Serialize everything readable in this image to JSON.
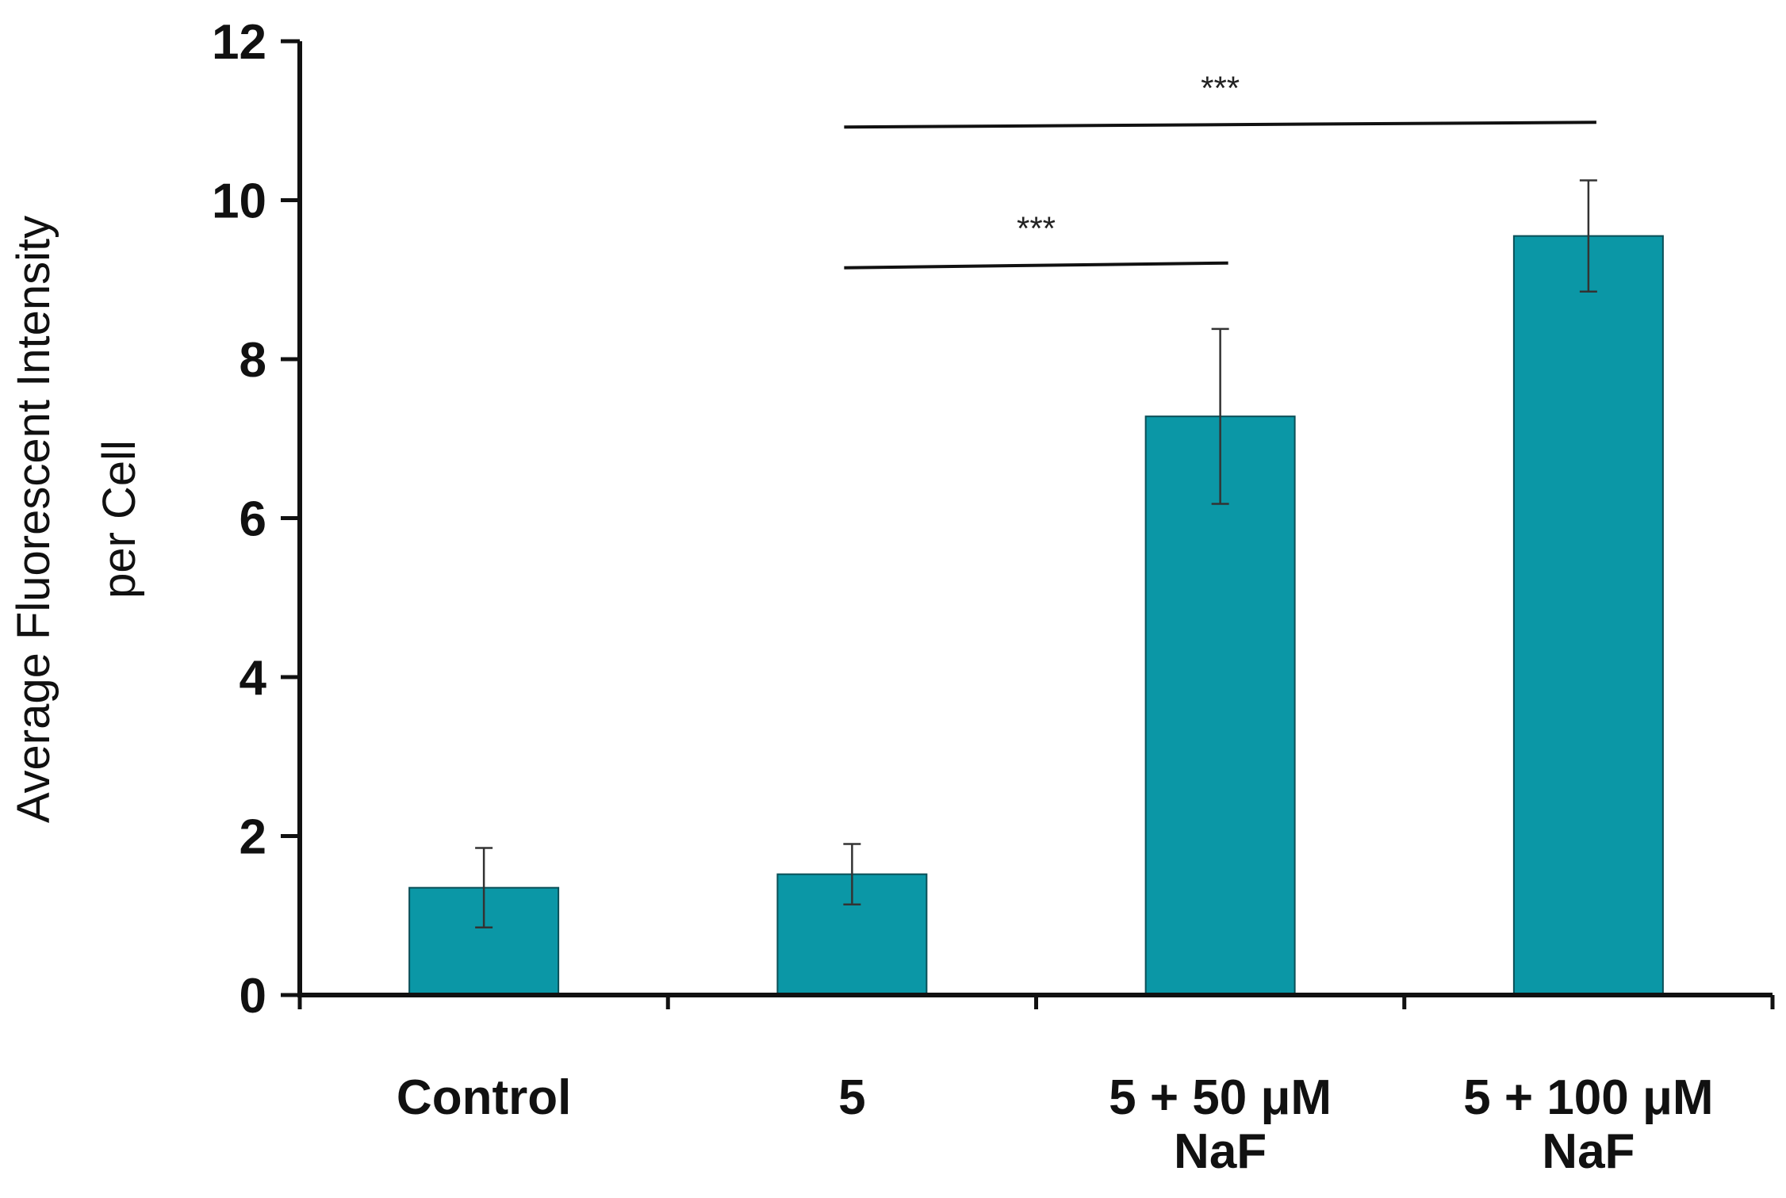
{
  "chart_data": {
    "type": "bar",
    "title": "",
    "xlabel": "",
    "ylabel": [
      "Average Fluorescent Intensity",
      "per Cell"
    ],
    "ylim": [
      0,
      12
    ],
    "yticks": [
      0,
      2,
      4,
      6,
      8,
      10,
      12
    ],
    "categories": [
      [
        "Control"
      ],
      [
        "5"
      ],
      [
        "5 + 50 μM",
        "NaF"
      ],
      [
        "5 + 100 μM",
        "NaF"
      ]
    ],
    "series": [
      {
        "name": "Average Fluorescent Intensity per Cell",
        "values": [
          1.35,
          1.52,
          7.28,
          9.55
        ],
        "error": [
          0.5,
          0.38,
          1.1,
          0.7
        ]
      }
    ],
    "bar_color": "#0b97a6",
    "significance": [
      {
        "from": 1,
        "to": 2,
        "level": 9.15,
        "label": "***"
      },
      {
        "from": 1,
        "to": 3,
        "level": 10.92,
        "label": "***"
      }
    ]
  }
}
